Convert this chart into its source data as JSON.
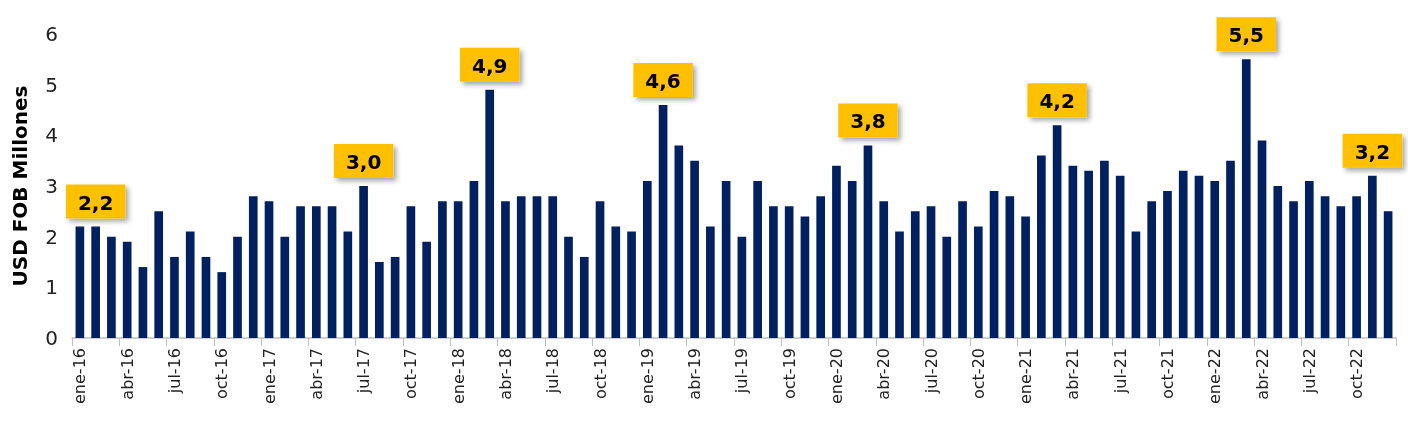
{
  "chart_data": {
    "type": "bar",
    "ylabel": "USD FOB Millones",
    "categories": [
      "ene-16",
      null,
      null,
      "abr-16",
      null,
      null,
      "jul-16",
      null,
      null,
      "oct-16",
      null,
      null,
      "ene-17",
      null,
      null,
      "abr-17",
      null,
      null,
      "jul-17",
      null,
      null,
      "oct-17",
      null,
      null,
      "ene-18",
      null,
      null,
      "abr-18",
      null,
      null,
      "jul-18",
      null,
      null,
      "oct-18",
      null,
      null,
      "ene-19",
      null,
      null,
      "abr-19",
      null,
      null,
      "jul-19",
      null,
      null,
      "oct-19",
      null,
      null,
      "ene-20",
      null,
      null,
      "abr-20",
      null,
      null,
      "jul-20",
      null,
      null,
      "oct-20",
      null,
      null,
      "ene-21",
      null,
      null,
      "abr-21",
      null,
      null,
      "jul-21",
      null,
      null,
      "oct-21",
      null,
      null,
      "ene-22",
      null,
      null,
      "abr-22",
      null,
      null,
      "jul-22",
      null,
      null,
      "oct-22",
      null,
      null
    ],
    "values": [
      2.2,
      2.2,
      2.0,
      1.9,
      1.4,
      2.5,
      1.6,
      2.1,
      1.6,
      1.3,
      2.0,
      2.8,
      2.7,
      2.0,
      2.6,
      2.6,
      2.6,
      2.1,
      3.0,
      1.5,
      1.6,
      2.6,
      1.9,
      2.7,
      2.7,
      3.1,
      4.9,
      2.7,
      2.8,
      2.8,
      2.8,
      2.0,
      1.6,
      2.7,
      2.2,
      2.1,
      3.1,
      4.6,
      3.8,
      3.5,
      2.2,
      3.1,
      2.0,
      3.1,
      2.6,
      2.6,
      2.4,
      2.8,
      3.4,
      3.1,
      3.8,
      2.7,
      2.1,
      2.5,
      2.6,
      2.0,
      2.7,
      2.2,
      2.9,
      2.8,
      2.4,
      3.6,
      4.2,
      3.4,
      3.3,
      3.5,
      3.2,
      2.1,
      2.7,
      2.9,
      3.3,
      3.2,
      3.1,
      3.5,
      5.5,
      3.9,
      3.0,
      2.7,
      3.1,
      2.8,
      2.6,
      2.8,
      3.2,
      2.5
    ],
    "value_labels": [
      null,
      "2,2",
      null,
      null,
      null,
      null,
      null,
      null,
      null,
      null,
      null,
      null,
      null,
      null,
      null,
      null,
      null,
      null,
      "3,0",
      null,
      null,
      null,
      null,
      null,
      null,
      null,
      "4,9",
      null,
      null,
      null,
      null,
      null,
      null,
      null,
      null,
      null,
      null,
      "4,6",
      null,
      null,
      null,
      null,
      null,
      null,
      null,
      null,
      null,
      null,
      null,
      null,
      "3,8",
      null,
      null,
      null,
      null,
      null,
      null,
      null,
      null,
      null,
      null,
      null,
      "4,2",
      null,
      null,
      null,
      null,
      null,
      null,
      null,
      null,
      null,
      null,
      null,
      "5,5",
      null,
      null,
      null,
      null,
      null,
      null,
      null,
      "3,2",
      null
    ],
    "color": "#002060",
    "ylim": [
      0,
      6
    ],
    "yticks": [
      0,
      1,
      2,
      3,
      4,
      5,
      6
    ],
    "grid": false
  }
}
